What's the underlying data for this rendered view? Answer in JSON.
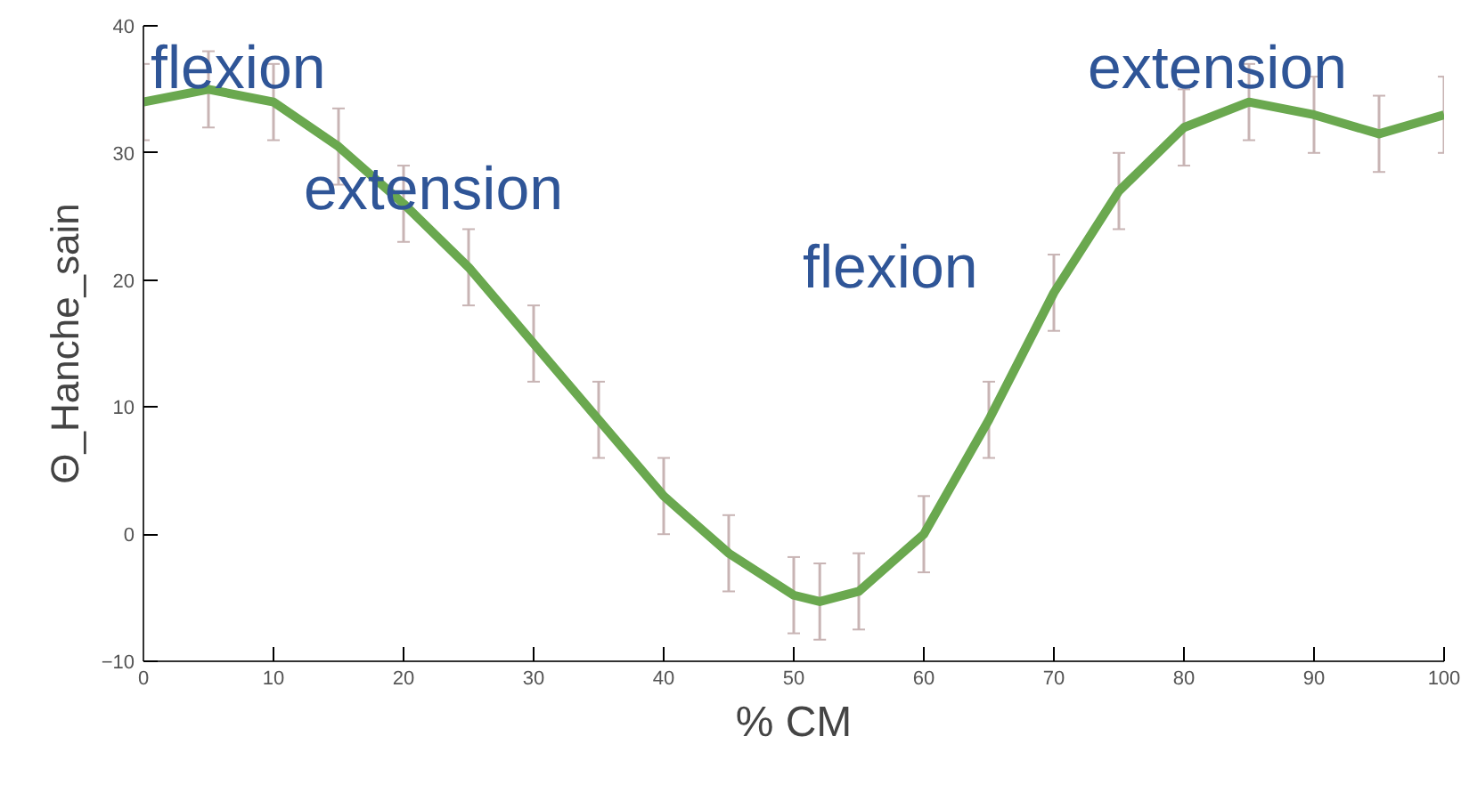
{
  "chart_data": {
    "type": "line",
    "xlabel": "% CM",
    "ylabel": "Θ_Hanche_sain",
    "x": [
      0,
      5,
      10,
      15,
      20,
      25,
      30,
      35,
      40,
      45,
      50,
      52,
      55,
      60,
      65,
      70,
      75,
      80,
      85,
      90,
      95,
      100
    ],
    "series": [
      {
        "color": "#6aa84f",
        "values": [
          34,
          35,
          34,
          30.5,
          26,
          21,
          15,
          9,
          3,
          -1.5,
          -4.8,
          -5.3,
          -4.5,
          0,
          9,
          19,
          27,
          32,
          34,
          33,
          31.5,
          33
        ],
        "errors": [
          3,
          3,
          3,
          3,
          3,
          3,
          3,
          3,
          3,
          3,
          3,
          3,
          3,
          3,
          3,
          3,
          3,
          3,
          3,
          3,
          3,
          3
        ]
      }
    ],
    "xlim": [
      0,
      100
    ],
    "ylim": [
      -10,
      40
    ],
    "xticks": [
      0,
      10,
      20,
      30,
      40,
      50,
      60,
      70,
      80,
      90,
      100
    ],
    "yticks": [
      -10,
      0,
      10,
      20,
      30,
      40
    ],
    "grid": false,
    "marker": "none",
    "line_style": "solid",
    "annotations": [
      "flexion",
      "extension",
      "flexion",
      "extension"
    ]
  }
}
